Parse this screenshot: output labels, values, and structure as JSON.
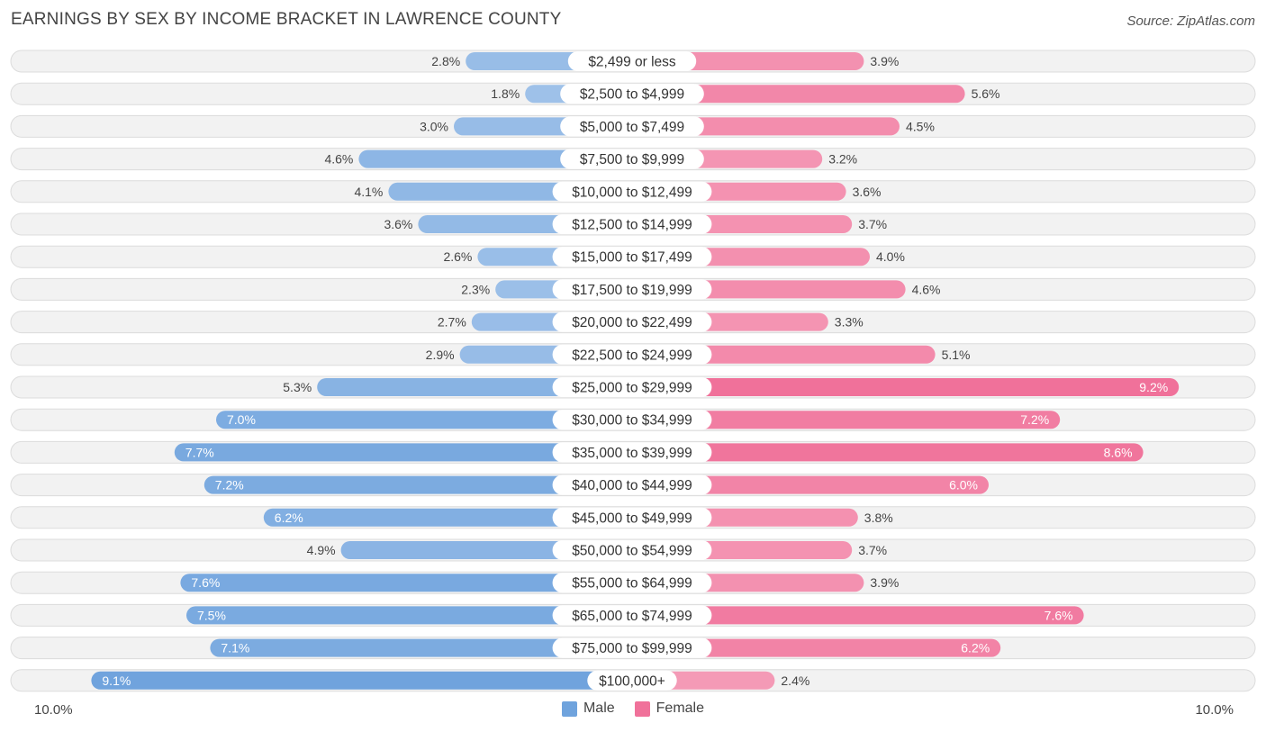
{
  "title": "EARNINGS BY SEX BY INCOME BRACKET IN LAWRENCE COUNTY",
  "source": "Source: ZipAtlas.com",
  "axis": {
    "left_label": "10.0%",
    "right_label": "10.0%"
  },
  "legend": {
    "male_label": "Male",
    "female_label": "Female"
  },
  "colors": {
    "male": "#6fa3dd",
    "male_light": "#aac8ec",
    "female": "#f0719a",
    "female_light": "#f6a8c0",
    "row_bg": "#f2f2f2",
    "row_border": "#dcdcdc"
  },
  "chart_data": {
    "type": "bar",
    "orientation": "horizontal-diverging",
    "title": "EARNINGS BY SEX BY INCOME BRACKET IN LAWRENCE COUNTY",
    "xlim": [
      -10,
      10
    ],
    "unit": "%",
    "categories": [
      "$2,499 or less",
      "$2,500 to $4,999",
      "$5,000 to $7,499",
      "$7,500 to $9,999",
      "$10,000 to $12,499",
      "$12,500 to $14,999",
      "$15,000 to $17,499",
      "$17,500 to $19,999",
      "$20,000 to $22,499",
      "$22,500 to $24,999",
      "$25,000 to $29,999",
      "$30,000 to $34,999",
      "$35,000 to $39,999",
      "$40,000 to $44,999",
      "$45,000 to $49,999",
      "$50,000 to $54,999",
      "$55,000 to $64,999",
      "$65,000 to $74,999",
      "$75,000 to $99,999",
      "$100,000+"
    ],
    "series": [
      {
        "name": "Male",
        "values": [
          2.8,
          1.8,
          3.0,
          4.6,
          4.1,
          3.6,
          2.6,
          2.3,
          2.7,
          2.9,
          5.3,
          7.0,
          7.7,
          7.2,
          6.2,
          4.9,
          7.6,
          7.5,
          7.1,
          9.1
        ]
      },
      {
        "name": "Female",
        "values": [
          3.9,
          5.6,
          4.5,
          3.2,
          3.6,
          3.7,
          4.0,
          4.6,
          3.3,
          5.1,
          9.2,
          7.2,
          8.6,
          6.0,
          3.8,
          3.7,
          3.9,
          7.6,
          6.2,
          2.4
        ]
      }
    ]
  }
}
